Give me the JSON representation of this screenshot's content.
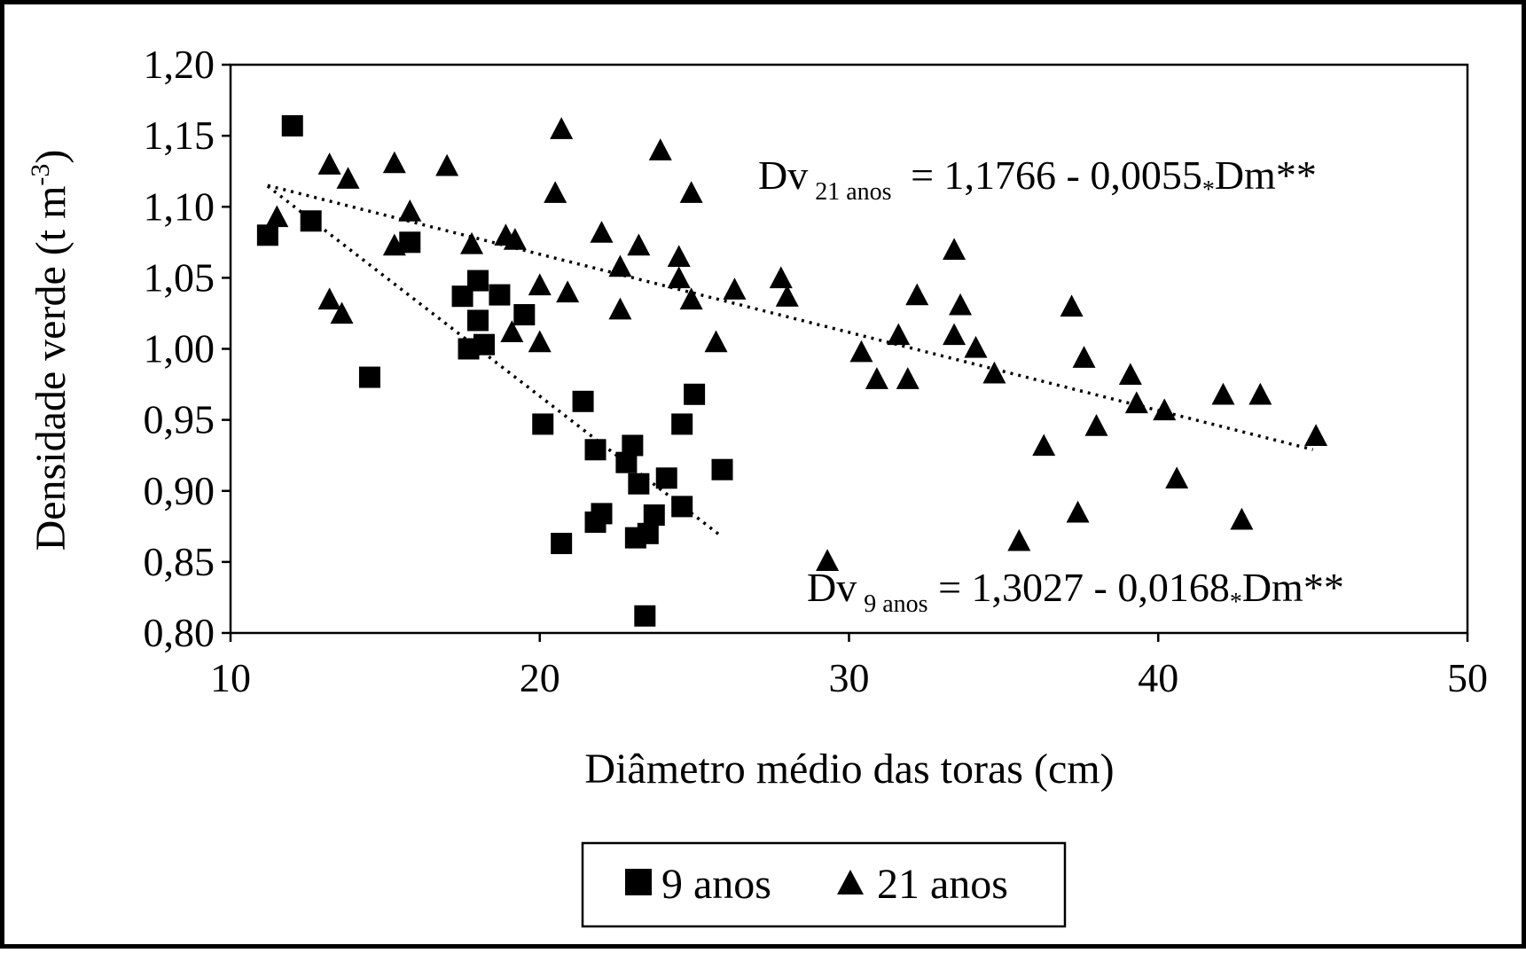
{
  "chart_data": {
    "type": "scatter",
    "xlabel": "Diâmetro médio das toras  (cm)",
    "ylabel_main": "Densidade verde (t m",
    "ylabel_sup": "-3",
    "ylabel_close": ")",
    "xlim": [
      10,
      50
    ],
    "ylim": [
      0.8,
      1.2
    ],
    "xticks": [
      10,
      20,
      30,
      40,
      50
    ],
    "xtick_labels": [
      "10",
      "20",
      "30",
      "40",
      "50"
    ],
    "yticks": [
      0.8,
      0.85,
      0.9,
      0.95,
      1.0,
      1.05,
      1.1,
      1.15,
      1.2
    ],
    "ytick_labels": [
      "0,80",
      "0,85",
      "0,90",
      "0,95",
      "1,00",
      "1,05",
      "1,10",
      "1,15",
      "1,20"
    ],
    "grid": false,
    "legend_position": "bottom-center",
    "series": [
      {
        "name": "9 anos",
        "marker": "square",
        "color": "#000000",
        "points": [
          [
            11.2,
            1.08
          ],
          [
            12.0,
            1.157
          ],
          [
            12.6,
            1.09
          ],
          [
            15.8,
            1.075
          ],
          [
            14.5,
            0.98
          ],
          [
            17.5,
            1.037
          ],
          [
            18.0,
            1.048
          ],
          [
            18.7,
            1.038
          ],
          [
            18.0,
            1.02
          ],
          [
            17.7,
            1.0
          ],
          [
            18.2,
            1.003
          ],
          [
            19.5,
            1.024
          ],
          [
            20.1,
            0.947
          ],
          [
            21.4,
            0.963
          ],
          [
            21.8,
            0.929
          ],
          [
            21.8,
            0.878
          ],
          [
            22.0,
            0.884
          ],
          [
            20.7,
            0.863
          ],
          [
            22.8,
            0.92
          ],
          [
            23.0,
            0.932
          ],
          [
            23.2,
            0.905
          ],
          [
            24.1,
            0.909
          ],
          [
            23.5,
            0.87
          ],
          [
            23.1,
            0.867
          ],
          [
            23.7,
            0.883
          ],
          [
            23.4,
            0.812
          ],
          [
            24.6,
            0.947
          ],
          [
            25.0,
            0.968
          ],
          [
            24.6,
            0.889
          ],
          [
            25.9,
            0.915
          ]
        ],
        "trend_x": [
          11.2,
          25.9
        ]
      },
      {
        "name": "21 anos",
        "marker": "triangle",
        "color": "#000000",
        "points": [
          [
            11.5,
            1.093
          ],
          [
            13.2,
            1.13
          ],
          [
            13.8,
            1.12
          ],
          [
            13.2,
            1.035
          ],
          [
            13.6,
            1.025
          ],
          [
            15.3,
            1.131
          ],
          [
            15.3,
            1.073
          ],
          [
            15.8,
            1.097
          ],
          [
            17.0,
            1.129
          ],
          [
            17.8,
            1.074
          ],
          [
            18.9,
            1.08
          ],
          [
            19.2,
            1.077
          ],
          [
            19.1,
            1.012
          ],
          [
            20.0,
            1.045
          ],
          [
            20.0,
            1.005
          ],
          [
            20.5,
            1.11
          ],
          [
            20.7,
            1.155
          ],
          [
            20.9,
            1.04
          ],
          [
            22.0,
            1.082
          ],
          [
            22.6,
            1.058
          ],
          [
            22.6,
            1.028
          ],
          [
            23.2,
            1.073
          ],
          [
            23.9,
            1.14
          ],
          [
            24.5,
            1.065
          ],
          [
            24.5,
            1.05
          ],
          [
            24.9,
            1.11
          ],
          [
            24.9,
            1.035
          ],
          [
            25.7,
            1.005
          ],
          [
            26.3,
            1.042
          ],
          [
            27.8,
            1.05
          ],
          [
            28.0,
            1.037
          ],
          [
            29.3,
            0.851
          ],
          [
            30.4,
            0.998
          ],
          [
            30.9,
            0.979
          ],
          [
            31.6,
            1.01
          ],
          [
            31.9,
            0.979
          ],
          [
            32.2,
            1.038
          ],
          [
            33.4,
            1.07
          ],
          [
            33.4,
            1.01
          ],
          [
            33.6,
            1.031
          ],
          [
            34.1,
            1.001
          ],
          [
            34.7,
            0.983
          ],
          [
            35.5,
            0.865
          ],
          [
            36.3,
            0.932
          ],
          [
            37.2,
            1.03
          ],
          [
            37.4,
            0.885
          ],
          [
            37.6,
            0.994
          ],
          [
            38.0,
            0.946
          ],
          [
            39.1,
            0.982
          ],
          [
            39.3,
            0.962
          ],
          [
            40.2,
            0.957
          ],
          [
            40.6,
            0.909
          ],
          [
            42.1,
            0.968
          ],
          [
            42.7,
            0.88
          ],
          [
            43.3,
            0.968
          ],
          [
            45.1,
            0.939
          ]
        ],
        "trend_x": [
          11.2,
          45.0
        ]
      }
    ],
    "equations": [
      {
        "prefix": "Dv",
        "subscript": "21 anos",
        "middle": " = 1,1766 - 0,0055",
        "star": "*",
        "suffix": "Dm**",
        "intercept": 1.1766,
        "slope": -0.0055
      },
      {
        "prefix": "Dv",
        "subscript": "9 anos",
        "middle": " = 1,3027 - 0,0168",
        "star": "*",
        "suffix": "Dm**",
        "intercept": 1.3027,
        "slope": -0.0168
      }
    ],
    "legend": {
      "items": [
        {
          "label": "9 anos",
          "marker": "square"
        },
        {
          "label": "21 anos",
          "marker": "triangle"
        }
      ]
    }
  }
}
